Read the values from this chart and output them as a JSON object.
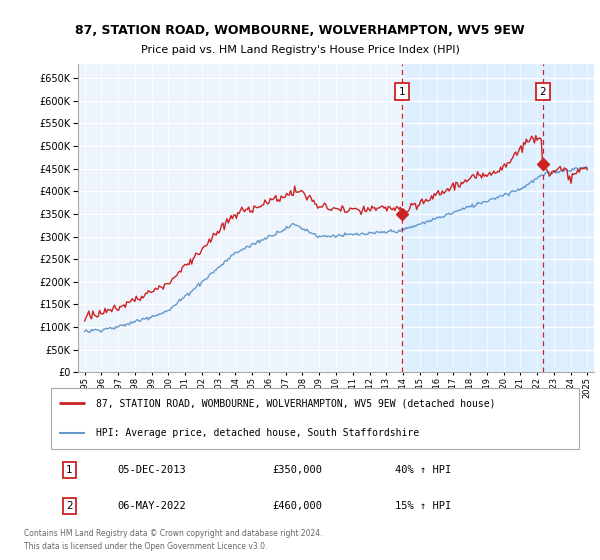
{
  "title": "87, STATION ROAD, WOMBOURNE, WOLVERHAMPTON, WV5 9EW",
  "subtitle": "Price paid vs. HM Land Registry's House Price Index (HPI)",
  "legend_line1": "87, STATION ROAD, WOMBOURNE, WOLVERHAMPTON, WV5 9EW (detached house)",
  "legend_line2": "HPI: Average price, detached house, South Staffordshire",
  "annotation1": {
    "label": "1",
    "date": "05-DEC-2013",
    "price": "£350,000",
    "change": "40% ↑ HPI"
  },
  "annotation2": {
    "label": "2",
    "date": "06-MAY-2022",
    "price": "£460,000",
    "change": "15% ↑ HPI"
  },
  "footer": "Contains HM Land Registry data © Crown copyright and database right 2024.\nThis data is licensed under the Open Government Licence v3.0.",
  "red_color": "#cc2222",
  "blue_color": "#6699cc",
  "shade_color": "#ddeeff",
  "bg_color": "#eef4fb",
  "grid_color": "#ccddee",
  "ylim": [
    0,
    680000
  ],
  "yticks": [
    0,
    50000,
    100000,
    150000,
    200000,
    250000,
    300000,
    350000,
    400000,
    450000,
    500000,
    550000,
    600000,
    650000
  ],
  "vline1_x": 2013.92,
  "vline2_x": 2022.35,
  "sale1_y": 350000,
  "sale2_y": 460000,
  "xmin": 1994.6,
  "xmax": 2025.4
}
